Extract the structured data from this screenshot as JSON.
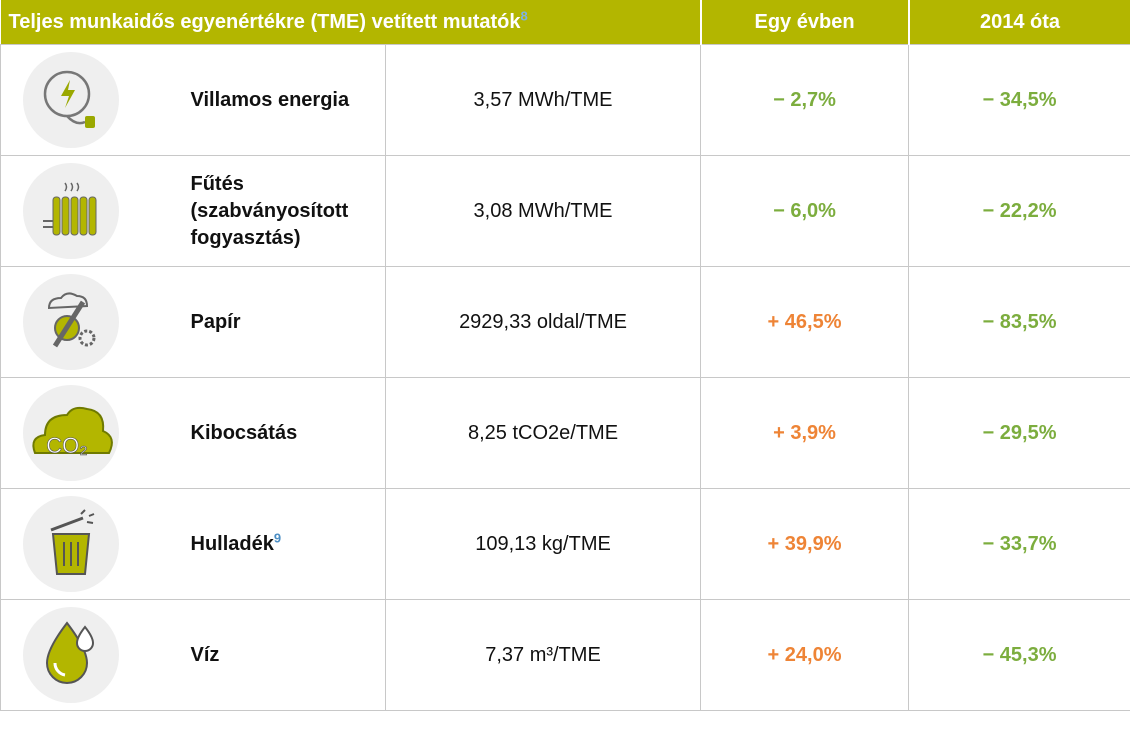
{
  "header": {
    "title": "Teljes munkaidős egyenértékre (TME) vetített mutatók",
    "title_note": "8",
    "columns": [
      "Egy évben",
      "2014 óta"
    ]
  },
  "table": {
    "rows": [
      {
        "label": "Villamos energia",
        "value": "3,57 MWh/TME",
        "year": "− 2,7%",
        "since": "− 34,5%"
      },
      {
        "label": "Fűtés (szabványosított fogyasztás)",
        "value": "3,08 MWh/TME",
        "year": "− 6,0%",
        "since": "− 22,2%"
      },
      {
        "label": "Papír",
        "value": "2929,33 oldal/TME",
        "year": "+ 46,5%",
        "since": "− 83,5%"
      },
      {
        "label": "Kibocsátás",
        "value": "8,25 tCO2e/TME",
        "year": "+ 3,9%",
        "since": "− 29,5%"
      },
      {
        "label": "Hulladék",
        "note": "9",
        "value": "109,13 kg/TME",
        "year": "+ 39,9%",
        "since": "− 33,7%"
      },
      {
        "label": "Víz",
        "value": "7,37 m³/TME",
        "year": "+ 24,0%",
        "since": "− 45,3%"
      }
    ]
  }
}
